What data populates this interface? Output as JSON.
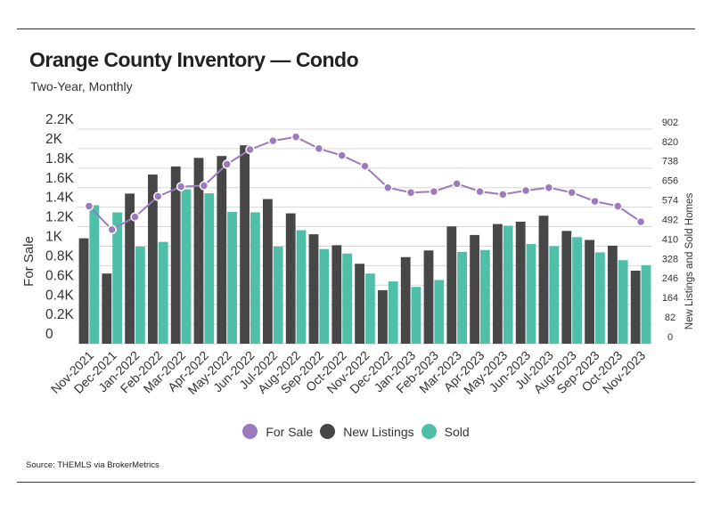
{
  "header": {
    "title": "Orange County Inventory — Condo",
    "subtitle": "Two-Year, Monthly"
  },
  "footer": {
    "source": "Source:  THEMLS via BrokerMetrics"
  },
  "colors": {
    "for_sale": "#9b7bbd",
    "new_listings": "#474747",
    "sold": "#4fbfa8",
    "grid": "#d6d6d6",
    "text": "#333333"
  },
  "chart_data": {
    "type": "bar",
    "categories": [
      "Nov-2021",
      "Dec-2021",
      "Jan-2022",
      "Feb-2022",
      "Mar-2022",
      "Apr-2022",
      "May-2022",
      "Jun-2022",
      "Jul-2022",
      "Aug-2022",
      "Sep-2022",
      "Oct-2022",
      "Nov-2022",
      "Dec-2022",
      "Jan-2023",
      "Feb-2023",
      "Mar-2023",
      "Apr-2023",
      "May-2023",
      "Jun-2023",
      "Jul-2023",
      "Aug-2023",
      "Sep-2023",
      "Oct-2023",
      "Nov-2023"
    ],
    "series": [
      {
        "name": "For Sale",
        "type": "line",
        "axis": "left",
        "values": [
          1410,
          1170,
          1300,
          1510,
          1610,
          1620,
          1840,
          1990,
          2080,
          2120,
          2000,
          1930,
          1820,
          1600,
          1550,
          1560,
          1640,
          1560,
          1530,
          1570,
          1600,
          1550,
          1460,
          1410,
          1250
        ]
      },
      {
        "name": "New Listings",
        "type": "bar",
        "axis": "right",
        "values": [
          443,
          295,
          631,
          711,
          745,
          781,
          789,
          834,
          608,
          548,
          460,
          414,
          336,
          225,
          364,
          392,
          493,
          457,
          503,
          513,
          538,
          474,
          436,
          412,
          307
        ]
      },
      {
        "name": "Sold",
        "type": "bar",
        "axis": "right",
        "values": [
          582,
          552,
          408,
          428,
          649,
          632,
          554,
          552,
          408,
          477,
          398,
          379,
          295,
          262,
          239,
          268,
          386,
          394,
          496,
          419,
          410,
          448,
          384,
          351,
          330
        ]
      }
    ],
    "y_left": {
      "label": "For Sale",
      "ticks": [
        "0",
        "0.2K",
        "0.4K",
        "0.6K",
        "0.8K",
        "1K",
        "1.2K",
        "1.4K",
        "1.6K",
        "1.8K",
        "2K",
        "2.2K"
      ],
      "range": [
        0,
        2200
      ]
    },
    "y_right": {
      "label": "New Listings and Sold Homes",
      "ticks": [
        "0",
        "82",
        "164",
        "246",
        "328",
        "410",
        "492",
        "574",
        "656",
        "738",
        "820",
        "902"
      ],
      "range": [
        0,
        902
      ]
    },
    "grid": "horizontal",
    "legend_position": "bottom"
  }
}
